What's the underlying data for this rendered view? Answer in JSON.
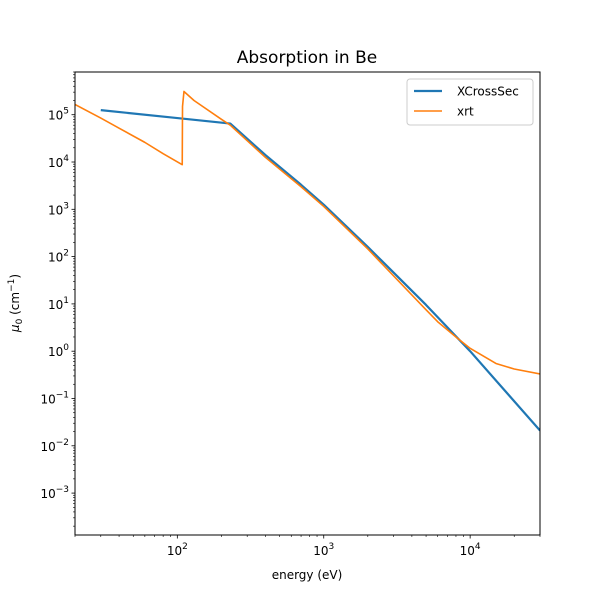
{
  "chart_data": {
    "type": "line",
    "title": "Absorption in Be",
    "xlabel": "energy (eV)",
    "ylabel_base": "μ",
    "ylabel_sub": "0",
    "ylabel_unit_open": " (cm",
    "ylabel_unit_sup": "−1",
    "ylabel_unit_close": ")",
    "xscale": "log",
    "yscale": "log",
    "xlim": [
      20,
      30000
    ],
    "ylim": [
      0.00013,
      800000
    ],
    "xticks": [
      {
        "value": 100,
        "base": "10",
        "exp": "2"
      },
      {
        "value": 1000,
        "base": "10",
        "exp": "3"
      },
      {
        "value": 10000,
        "base": "10",
        "exp": "4"
      }
    ],
    "yticks": [
      {
        "value": 0.001,
        "base": "10",
        "exp": "−3"
      },
      {
        "value": 0.01,
        "base": "10",
        "exp": "−2"
      },
      {
        "value": 0.1,
        "base": "10",
        "exp": "−1"
      },
      {
        "value": 1,
        "base": "10",
        "exp": "0"
      },
      {
        "value": 10,
        "base": "10",
        "exp": "1"
      },
      {
        "value": 100,
        "base": "10",
        "exp": "2"
      },
      {
        "value": 1000,
        "base": "10",
        "exp": "3"
      },
      {
        "value": 10000,
        "base": "10",
        "exp": "4"
      },
      {
        "value": 100000,
        "base": "10",
        "exp": "5"
      }
    ],
    "legend_position": "top-right",
    "grid": false,
    "series": [
      {
        "name": "XCrossSec",
        "color": "#1f77b4",
        "x": [
          30,
          100,
          230,
          400,
          700,
          1000,
          2000,
          5000,
          10000,
          30000
        ],
        "y": [
          125000,
          85000,
          65000,
          14000,
          3300,
          1250,
          160,
          9.5,
          1.0,
          0.021
        ]
      },
      {
        "name": "xrt",
        "color": "#ff7f0e",
        "x": [
          20,
          30,
          40,
          60,
          80,
          108,
          108.5,
          111,
          130,
          200,
          230,
          400,
          700,
          1000,
          2000,
          5000,
          6000,
          8000,
          10000,
          15000,
          20000,
          30000
        ],
        "y": [
          165000,
          85000,
          52000,
          26000,
          15000,
          8800,
          150000,
          310000,
          200000,
          80000,
          60000,
          12500,
          3000,
          1150,
          145,
          7.5,
          4.2,
          2.0,
          1.15,
          0.55,
          0.42,
          0.33
        ]
      }
    ]
  }
}
